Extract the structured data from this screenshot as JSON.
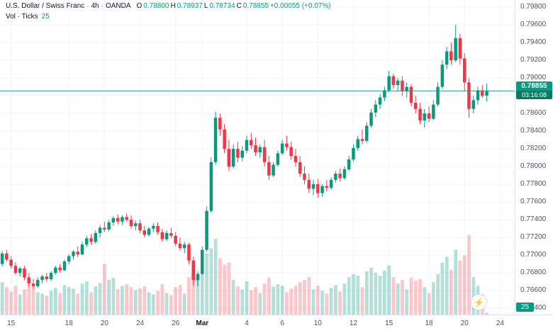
{
  "header": {
    "symbol": "U.S. Dollar / Swiss Franc",
    "separator": "·",
    "timeframe": "4h",
    "exchange": "OANDA",
    "ohlc": {
      "o_label": "O",
      "o_value": "0.78800",
      "h_label": "H",
      "h_value": "0.78937",
      "l_label": "L",
      "l_value": "0.78734",
      "c_label": "C",
      "c_value": "0.78855",
      "change": "+0.00055 (+0.07%)"
    },
    "volume_row": {
      "label": "Vol · Ticks",
      "value": "25"
    }
  },
  "chart_data": {
    "type": "candlestick",
    "title": "U.S. Dollar / Swiss Franc · 4h · OANDA",
    "legend_position": "top-left",
    "grid": true,
    "y_axis": {
      "min": 0.7633,
      "max": 0.7988,
      "tick_min": 0.764,
      "tick_max": 0.798,
      "tick_step": 0.002,
      "decimals": 5
    },
    "x_labels": [
      {
        "label": "15",
        "index": 2
      },
      {
        "label": "18",
        "index": 15
      },
      {
        "label": "20",
        "index": 23
      },
      {
        "label": "24",
        "index": 31
      },
      {
        "label": "26",
        "index": 39
      },
      {
        "label": "Mar",
        "index": 45,
        "bold": true
      },
      {
        "label": "4",
        "index": 55
      },
      {
        "label": "6",
        "index": 63
      },
      {
        "label": "10",
        "index": 71
      },
      {
        "label": "12",
        "index": 79
      },
      {
        "label": "15",
        "index": 87
      },
      {
        "label": "18",
        "index": 96
      },
      {
        "label": "20",
        "index": 104
      },
      {
        "label": "24",
        "index": 112
      }
    ],
    "last_price": 0.78855,
    "last_price_label": "0.78855",
    "countdown": "03:16:08",
    "last_volume_label": "25",
    "colors": {
      "up": "#089981",
      "down": "#f23645",
      "vol_up": "rgba(8,153,129,0.30)",
      "vol_down": "rgba(242,54,69,0.28)",
      "grid": "#f0f3fa",
      "price_line": "#089981",
      "badge": "#089981"
    },
    "candles": [
      [
        0.769,
        0.7705,
        0.7687,
        0.7702,
        450
      ],
      [
        0.7702,
        0.7706,
        0.7693,
        0.7695,
        380
      ],
      [
        0.7695,
        0.7699,
        0.7685,
        0.7688,
        320
      ],
      [
        0.7688,
        0.7692,
        0.7678,
        0.768,
        400
      ],
      [
        0.768,
        0.7687,
        0.7676,
        0.7685,
        280
      ],
      [
        0.7685,
        0.7688,
        0.7672,
        0.7675,
        350
      ],
      [
        0.7675,
        0.768,
        0.7665,
        0.7668,
        420
      ],
      [
        0.7668,
        0.7673,
        0.7662,
        0.7665,
        390
      ],
      [
        0.7665,
        0.7675,
        0.7663,
        0.7672,
        310
      ],
      [
        0.7672,
        0.7678,
        0.7668,
        0.7676,
        290
      ],
      [
        0.7676,
        0.768,
        0.767,
        0.7673,
        260
      ],
      [
        0.7673,
        0.7682,
        0.7671,
        0.768,
        330
      ],
      [
        0.768,
        0.7688,
        0.7678,
        0.7686,
        370
      ],
      [
        0.7686,
        0.769,
        0.768,
        0.7683,
        300
      ],
      [
        0.7683,
        0.7695,
        0.7682,
        0.7693,
        410
      ],
      [
        0.7693,
        0.7701,
        0.769,
        0.7699,
        380
      ],
      [
        0.7699,
        0.7706,
        0.7695,
        0.7704,
        360
      ],
      [
        0.7704,
        0.771,
        0.7698,
        0.7701,
        290
      ],
      [
        0.7701,
        0.7715,
        0.77,
        0.7712,
        430
      ],
      [
        0.7712,
        0.7722,
        0.7709,
        0.7719,
        460
      ],
      [
        0.7719,
        0.7724,
        0.7712,
        0.7715,
        310
      ],
      [
        0.7715,
        0.7728,
        0.7713,
        0.7725,
        390
      ],
      [
        0.7725,
        0.7734,
        0.772,
        0.7731,
        440
      ],
      [
        0.7731,
        0.7738,
        0.7726,
        0.7729,
        700
      ],
      [
        0.7729,
        0.774,
        0.7727,
        0.7737,
        480
      ],
      [
        0.7737,
        0.7744,
        0.7733,
        0.7742,
        510
      ],
      [
        0.7742,
        0.7746,
        0.7735,
        0.7738,
        350
      ],
      [
        0.7738,
        0.7745,
        0.7734,
        0.7743,
        400
      ],
      [
        0.7743,
        0.7747,
        0.7738,
        0.774,
        420
      ],
      [
        0.774,
        0.7745,
        0.773,
        0.7733,
        380
      ],
      [
        0.7733,
        0.7739,
        0.7728,
        0.7736,
        340
      ],
      [
        0.7736,
        0.774,
        0.7725,
        0.7728,
        360
      ],
      [
        0.7728,
        0.7733,
        0.772,
        0.7723,
        390
      ],
      [
        0.7723,
        0.7732,
        0.7721,
        0.773,
        310
      ],
      [
        0.773,
        0.7736,
        0.7726,
        0.7733,
        280
      ],
      [
        0.7733,
        0.7737,
        0.7723,
        0.7726,
        330
      ],
      [
        0.7726,
        0.773,
        0.7715,
        0.7718,
        420
      ],
      [
        0.7718,
        0.7728,
        0.7716,
        0.7725,
        300
      ],
      [
        0.7725,
        0.7731,
        0.7719,
        0.7722,
        270
      ],
      [
        0.7722,
        0.7726,
        0.771,
        0.7713,
        380
      ],
      [
        0.7713,
        0.772,
        0.7705,
        0.7708,
        410
      ],
      [
        0.7708,
        0.7715,
        0.7702,
        0.7712,
        290
      ],
      [
        0.7712,
        0.7714,
        0.769,
        0.7694,
        520
      ],
      [
        0.7694,
        0.7698,
        0.7666,
        0.7672,
        680
      ],
      [
        0.7672,
        0.7682,
        0.7665,
        0.7679,
        540
      ],
      [
        0.7679,
        0.771,
        0.7678,
        0.7706,
        620
      ],
      [
        0.7706,
        0.7755,
        0.7704,
        0.775,
        850
      ],
      [
        0.775,
        0.781,
        0.7748,
        0.7805,
        920
      ],
      [
        0.7805,
        0.7862,
        0.7802,
        0.7855,
        1050
      ],
      [
        0.7855,
        0.786,
        0.7835,
        0.7842,
        780
      ],
      [
        0.7842,
        0.7848,
        0.7815,
        0.782,
        690
      ],
      [
        0.782,
        0.783,
        0.7795,
        0.78,
        720
      ],
      [
        0.78,
        0.7825,
        0.7798,
        0.782,
        480
      ],
      [
        0.782,
        0.7828,
        0.7805,
        0.781,
        390
      ],
      [
        0.781,
        0.7823,
        0.7806,
        0.7818,
        350
      ],
      [
        0.7818,
        0.7835,
        0.7815,
        0.783,
        460
      ],
      [
        0.783,
        0.7838,
        0.782,
        0.7824,
        340
      ],
      [
        0.7824,
        0.7833,
        0.7812,
        0.7816,
        380
      ],
      [
        0.7816,
        0.7825,
        0.781,
        0.7822,
        300
      ],
      [
        0.7822,
        0.783,
        0.78,
        0.7805,
        430
      ],
      [
        0.7805,
        0.7812,
        0.7785,
        0.779,
        510
      ],
      [
        0.779,
        0.7805,
        0.7788,
        0.7802,
        390
      ],
      [
        0.7802,
        0.7818,
        0.78,
        0.7815,
        420
      ],
      [
        0.7815,
        0.783,
        0.7813,
        0.7826,
        400
      ],
      [
        0.7826,
        0.7835,
        0.7818,
        0.7822,
        310
      ],
      [
        0.7822,
        0.7828,
        0.7808,
        0.7812,
        360
      ],
      [
        0.7812,
        0.782,
        0.78,
        0.7805,
        400
      ],
      [
        0.7805,
        0.7812,
        0.7788,
        0.7792,
        450
      ],
      [
        0.7792,
        0.78,
        0.778,
        0.7785,
        480
      ],
      [
        0.7785,
        0.7792,
        0.777,
        0.7775,
        520
      ],
      [
        0.7775,
        0.7785,
        0.7768,
        0.778,
        350
      ],
      [
        0.778,
        0.7786,
        0.7765,
        0.777,
        400
      ],
      [
        0.777,
        0.778,
        0.7766,
        0.7778,
        330
      ],
      [
        0.7778,
        0.7785,
        0.7772,
        0.7776,
        290
      ],
      [
        0.7776,
        0.7788,
        0.7774,
        0.7785,
        370
      ],
      [
        0.7785,
        0.7795,
        0.7782,
        0.7792,
        410
      ],
      [
        0.7792,
        0.7798,
        0.7783,
        0.7787,
        320
      ],
      [
        0.7787,
        0.78,
        0.7785,
        0.7797,
        430
      ],
      [
        0.7797,
        0.7812,
        0.7795,
        0.7808,
        520
      ],
      [
        0.7808,
        0.7825,
        0.7806,
        0.7821,
        560
      ],
      [
        0.7821,
        0.7835,
        0.7818,
        0.7831,
        540
      ],
      [
        0.7831,
        0.7842,
        0.7825,
        0.7829,
        380
      ],
      [
        0.7829,
        0.785,
        0.7827,
        0.7846,
        600
      ],
      [
        0.7846,
        0.7865,
        0.7844,
        0.7861,
        650
      ],
      [
        0.7861,
        0.7875,
        0.7856,
        0.787,
        580
      ],
      [
        0.787,
        0.7882,
        0.7865,
        0.7878,
        540
      ],
      [
        0.7878,
        0.789,
        0.7874,
        0.7886,
        610
      ],
      [
        0.7886,
        0.7908,
        0.7884,
        0.7902,
        680
      ],
      [
        0.7902,
        0.7905,
        0.7888,
        0.7892,
        520
      ],
      [
        0.7892,
        0.79,
        0.7885,
        0.7897,
        430
      ],
      [
        0.7897,
        0.7902,
        0.788,
        0.7885,
        480
      ],
      [
        0.7885,
        0.7895,
        0.7878,
        0.789,
        350
      ],
      [
        0.789,
        0.7893,
        0.7868,
        0.7872,
        510
      ],
      [
        0.7872,
        0.788,
        0.786,
        0.7865,
        470
      ],
      [
        0.7865,
        0.7872,
        0.7848,
        0.7852,
        490
      ],
      [
        0.7852,
        0.7865,
        0.7844,
        0.786,
        380
      ],
      [
        0.786,
        0.7868,
        0.785,
        0.7854,
        300
      ],
      [
        0.7854,
        0.7875,
        0.7852,
        0.787,
        450
      ],
      [
        0.787,
        0.7895,
        0.7868,
        0.789,
        560
      ],
      [
        0.789,
        0.792,
        0.7888,
        0.7915,
        720
      ],
      [
        0.7915,
        0.7935,
        0.791,
        0.793,
        800
      ],
      [
        0.793,
        0.794,
        0.7915,
        0.792,
        620
      ],
      [
        0.792,
        0.796,
        0.7918,
        0.7945,
        900
      ],
      [
        0.7945,
        0.795,
        0.7915,
        0.7922,
        750
      ],
      [
        0.7922,
        0.7928,
        0.7885,
        0.7895,
        820
      ],
      [
        0.7895,
        0.79,
        0.7855,
        0.7865,
        1100
      ],
      [
        0.7865,
        0.788,
        0.786,
        0.7875,
        520
      ],
      [
        0.7875,
        0.789,
        0.787,
        0.7886,
        400
      ],
      [
        0.7886,
        0.7892,
        0.7878,
        0.788,
        280
      ],
      [
        0.788,
        0.78937,
        0.78734,
        0.78855,
        25
      ]
    ]
  },
  "icons": {
    "lightning": "⚡"
  }
}
